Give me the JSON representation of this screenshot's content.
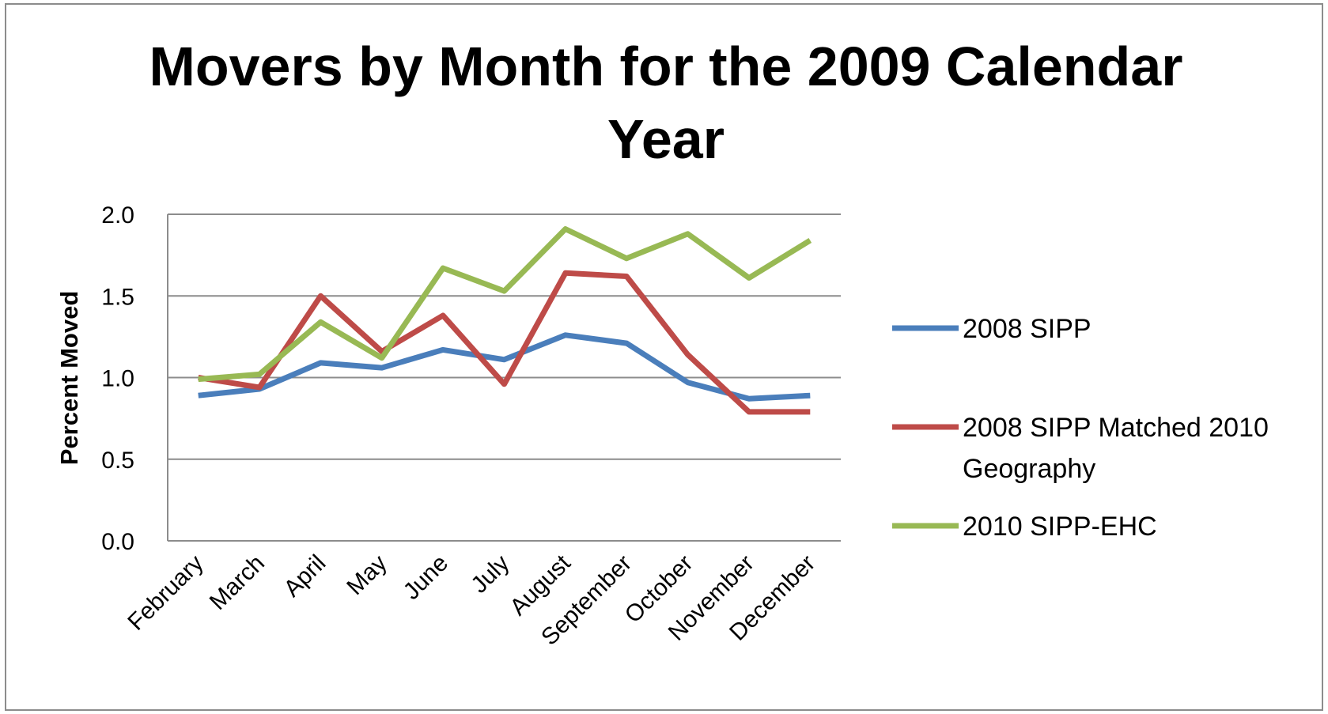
{
  "chart_data": {
    "type": "line",
    "title_lines": [
      "Movers by Month for the 2009 Calendar",
      "Year"
    ],
    "ylabel": "Percent Moved",
    "xlabel": "",
    "ylim": [
      0.0,
      2.0
    ],
    "yticks": [
      "0.0",
      "0.5",
      "1.0",
      "1.5",
      "2.0"
    ],
    "categories": [
      "February",
      "March",
      "April",
      "May",
      "June",
      "July",
      "August",
      "September",
      "October",
      "November",
      "December"
    ],
    "grid": "horizontal",
    "legend_position": "right",
    "series": [
      {
        "name": "2008 SIPP",
        "color": "#4a7ebb",
        "values": [
          0.89,
          0.93,
          1.09,
          1.06,
          1.17,
          1.11,
          1.26,
          1.21,
          0.97,
          0.87,
          0.89
        ]
      },
      {
        "name": "2008 SIPP Matched 2010 Geography",
        "legend_lines": [
          "2008 SIPP Matched  2010",
          "Geography"
        ],
        "color": "#be4b48",
        "values": [
          1.0,
          0.94,
          1.5,
          1.16,
          1.38,
          0.96,
          1.64,
          1.62,
          1.14,
          0.79,
          0.79
        ]
      },
      {
        "name": "2010 SIPP-EHC",
        "color": "#98b954",
        "values": [
          0.99,
          1.02,
          1.34,
          1.12,
          1.67,
          1.53,
          1.91,
          1.73,
          1.88,
          1.61,
          1.84
        ]
      }
    ]
  }
}
